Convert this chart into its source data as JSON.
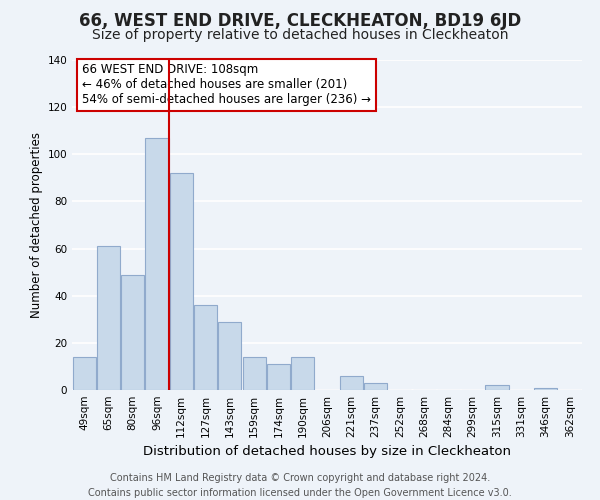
{
  "title": "66, WEST END DRIVE, CLECKHEATON, BD19 6JD",
  "subtitle": "Size of property relative to detached houses in Cleckheaton",
  "xlabel": "Distribution of detached houses by size in Cleckheaton",
  "ylabel": "Number of detached properties",
  "categories": [
    "49sqm",
    "65sqm",
    "80sqm",
    "96sqm",
    "112sqm",
    "127sqm",
    "143sqm",
    "159sqm",
    "174sqm",
    "190sqm",
    "206sqm",
    "221sqm",
    "237sqm",
    "252sqm",
    "268sqm",
    "284sqm",
    "299sqm",
    "315sqm",
    "331sqm",
    "346sqm",
    "362sqm"
  ],
  "values": [
    14,
    61,
    49,
    107,
    92,
    36,
    29,
    14,
    11,
    14,
    0,
    6,
    3,
    0,
    0,
    0,
    0,
    2,
    0,
    1,
    0
  ],
  "bar_color": "#c8d9ea",
  "bar_edge_color": "#90aacc",
  "vline_x": 3.5,
  "vline_color": "#cc0000",
  "annotation_text": "66 WEST END DRIVE: 108sqm\n← 46% of detached houses are smaller (201)\n54% of semi-detached houses are larger (236) →",
  "annotation_box_color": "white",
  "annotation_box_edgecolor": "#cc0000",
  "ylim": [
    0,
    140
  ],
  "yticks": [
    0,
    20,
    40,
    60,
    80,
    100,
    120,
    140
  ],
  "footer_line1": "Contains HM Land Registry data © Crown copyright and database right 2024.",
  "footer_line2": "Contains public sector information licensed under the Open Government Licence v3.0.",
  "background_color": "#eef3f9",
  "grid_color": "white",
  "title_fontsize": 12,
  "subtitle_fontsize": 10,
  "xlabel_fontsize": 9.5,
  "ylabel_fontsize": 8.5,
  "annotation_fontsize": 8.5,
  "footer_fontsize": 7.0,
  "tick_fontsize": 7.5
}
